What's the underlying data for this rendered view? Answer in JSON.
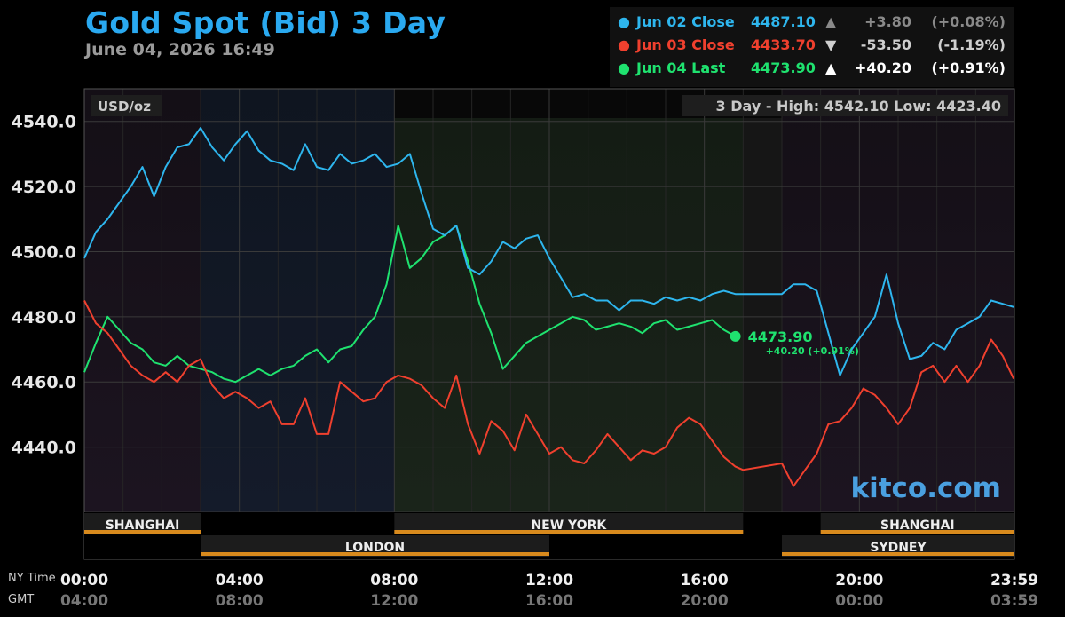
{
  "header": {
    "title": "Gold Spot (Bid) 3 Day",
    "subtitle": "June 04, 2026 16:49"
  },
  "legend": [
    {
      "name": "Jun 02 Close",
      "value": "4487.10",
      "arrow": "▲",
      "change": "+3.80",
      "pct": "(+0.08%)",
      "color": "#2eb6ee",
      "change_color": "#8a8a8a"
    },
    {
      "name": "Jun 03 Close",
      "value": "4433.70",
      "arrow": "▼",
      "change": "-53.50",
      "pct": "(-1.19%)",
      "color": "#f0402e",
      "change_color": "#cfcfcf"
    },
    {
      "name": "Jun 04 Last",
      "value": "4473.90",
      "arrow": "▲",
      "change": "+40.20",
      "pct": "(+0.91%)",
      "color": "#1fe26f",
      "change_color": "#ffffff"
    }
  ],
  "labels": {
    "unit": "USD/oz",
    "range": "3 Day - High: 4542.10  Low: 4423.40",
    "watermark": "kitco.com",
    "ny_time": "NY Time",
    "gmt": "GMT",
    "last_value": "4473.90",
    "last_change": "+40.20 (+0.91%)"
  },
  "sessions": [
    {
      "name": "SHANGHAI",
      "start": 0,
      "end": 3,
      "row": 0
    },
    {
      "name": "NEW YORK",
      "start": 8,
      "end": 17,
      "row": 0
    },
    {
      "name": "SHANGHAI",
      "start": 19,
      "end": 24,
      "row": 0
    },
    {
      "name": "LONDON",
      "start": 3,
      "end": 12,
      "row": 1
    },
    {
      "name": "SYDNEY",
      "start": 18,
      "end": 24,
      "row": 1
    }
  ],
  "colors": {
    "jun02": "#2eb6ee",
    "jun03": "#f0402e",
    "jun04": "#1fe26f",
    "session_bar": "#d88a1d"
  },
  "chart_data": {
    "type": "line",
    "title": "Gold Spot (Bid) 3 Day",
    "ylabel": "USD/oz",
    "ylim": [
      4420,
      4550
    ],
    "xlim": [
      0,
      24
    ],
    "yticks": [
      4440,
      4460,
      4480,
      4500,
      4520,
      4540
    ],
    "xticks_ny": [
      "00:00",
      "04:00",
      "08:00",
      "12:00",
      "16:00",
      "20:00",
      "23:59"
    ],
    "xticks_gmt": [
      "04:00",
      "08:00",
      "12:00",
      "16:00",
      "20:00",
      "00:00",
      "03:59"
    ],
    "grid": true,
    "legend_position": "top-right",
    "series": [
      {
        "name": "Jun 02 Close",
        "color": "#2eb6ee",
        "x": [
          0,
          0.3,
          0.6,
          0.9,
          1.2,
          1.5,
          1.8,
          2.1,
          2.4,
          2.7,
          3.0,
          3.3,
          3.6,
          3.9,
          4.2,
          4.5,
          4.8,
          5.1,
          5.4,
          5.7,
          6.0,
          6.3,
          6.6,
          6.9,
          7.2,
          7.5,
          7.8,
          8.1,
          8.4,
          8.7,
          9.0,
          9.3,
          9.6,
          9.9,
          10.2,
          10.5,
          10.8,
          11.1,
          11.4,
          11.7,
          12.0,
          12.3,
          12.6,
          12.9,
          13.2,
          13.5,
          13.8,
          14.1,
          14.4,
          14.7,
          15.0,
          15.3,
          15.6,
          15.9,
          16.2,
          16.5,
          16.8,
          17.0,
          18.0,
          18.3,
          18.6,
          18.9,
          19.2,
          19.5,
          19.8,
          20.1,
          20.4,
          20.7,
          21.0,
          21.3,
          21.6,
          21.9,
          22.2,
          22.5,
          22.8,
          23.1,
          23.4,
          23.7,
          23.98
        ],
        "y": [
          4498,
          4506,
          4510,
          4515,
          4520,
          4526,
          4517,
          4526,
          4532,
          4533,
          4538,
          4532,
          4528,
          4533,
          4537,
          4531,
          4528,
          4527,
          4525,
          4533,
          4526,
          4525,
          4530,
          4527,
          4528,
          4530,
          4526,
          4527,
          4530,
          4518,
          4507,
          4505,
          4508,
          4495,
          4493,
          4497,
          4503,
          4501,
          4504,
          4505,
          4498,
          4492,
          4486,
          4487,
          4485,
          4485,
          4482,
          4485,
          4485,
          4484,
          4486,
          4485,
          4486,
          4485,
          4487,
          4488,
          4487,
          4487,
          4487,
          4490,
          4490,
          4488,
          4475,
          4462,
          4470,
          4475,
          4480,
          4493,
          4478,
          4467,
          4468,
          4472,
          4470,
          4476,
          4478,
          4480,
          4485,
          4484,
          4483
        ]
      },
      {
        "name": "Jun 03 Close",
        "color": "#f0402e",
        "x": [
          0,
          0.3,
          0.6,
          0.9,
          1.2,
          1.5,
          1.8,
          2.1,
          2.4,
          2.7,
          3.0,
          3.3,
          3.6,
          3.9,
          4.2,
          4.5,
          4.8,
          5.1,
          5.4,
          5.7,
          6.0,
          6.3,
          6.6,
          6.9,
          7.2,
          7.5,
          7.8,
          8.1,
          8.4,
          8.7,
          9.0,
          9.3,
          9.6,
          9.9,
          10.2,
          10.5,
          10.8,
          11.1,
          11.4,
          11.7,
          12.0,
          12.3,
          12.6,
          12.9,
          13.2,
          13.5,
          13.8,
          14.1,
          14.4,
          14.7,
          15.0,
          15.3,
          15.6,
          15.9,
          16.2,
          16.5,
          16.8,
          17.0,
          18.0,
          18.3,
          18.6,
          18.9,
          19.2,
          19.5,
          19.8,
          20.1,
          20.4,
          20.7,
          21.0,
          21.3,
          21.6,
          21.9,
          22.2,
          22.5,
          22.8,
          23.1,
          23.4,
          23.7,
          23.98
        ],
        "y": [
          4485,
          4478,
          4475,
          4470,
          4465,
          4462,
          4460,
          4463,
          4460,
          4465,
          4467,
          4459,
          4455,
          4457,
          4455,
          4452,
          4454,
          4447,
          4447,
          4455,
          4444,
          4444,
          4460,
          4457,
          4454,
          4455,
          4460,
          4462,
          4461,
          4459,
          4455,
          4452,
          4462,
          4447,
          4438,
          4448,
          4445,
          4439,
          4450,
          4444,
          4438,
          4440,
          4436,
          4435,
          4439,
          4444,
          4440,
          4436,
          4439,
          4438,
          4440,
          4446,
          4449,
          4447,
          4442,
          4437,
          4434,
          4433,
          4435,
          4428,
          4433,
          4438,
          4447,
          4448,
          4452,
          4458,
          4456,
          4452,
          4447,
          4452,
          4463,
          4465,
          4460,
          4465,
          4460,
          4465,
          4473,
          4468,
          4461
        ]
      },
      {
        "name": "Jun 04 Last",
        "color": "#1fe26f",
        "x": [
          0,
          0.3,
          0.6,
          0.9,
          1.2,
          1.5,
          1.8,
          2.1,
          2.4,
          2.7,
          3.0,
          3.3,
          3.6,
          3.9,
          4.2,
          4.5,
          4.8,
          5.1,
          5.4,
          5.7,
          6.0,
          6.3,
          6.6,
          6.9,
          7.2,
          7.5,
          7.8,
          8.1,
          8.4,
          8.7,
          9.0,
          9.3,
          9.6,
          9.9,
          10.2,
          10.5,
          10.8,
          11.1,
          11.4,
          11.7,
          12.0,
          12.3,
          12.6,
          12.9,
          13.2,
          13.5,
          13.8,
          14.1,
          14.4,
          14.7,
          15.0,
          15.3,
          15.6,
          15.9,
          16.2,
          16.5,
          16.8
        ],
        "y": [
          4463,
          4472,
          4480,
          4476,
          4472,
          4470,
          4466,
          4465,
          4468,
          4465,
          4464,
          4463,
          4461,
          4460,
          4462,
          4464,
          4462,
          4464,
          4465,
          4468,
          4470,
          4466,
          4470,
          4471,
          4476,
          4480,
          4490,
          4508,
          4495,
          4498,
          4503,
          4505,
          4508,
          4497,
          4484,
          4475,
          4464,
          4468,
          4472,
          4474,
          4476,
          4478,
          4480,
          4479,
          4476,
          4477,
          4478,
          4477,
          4475,
          4478,
          4479,
          4476,
          4477,
          4478,
          4479,
          4476,
          4474
        ]
      }
    ]
  }
}
